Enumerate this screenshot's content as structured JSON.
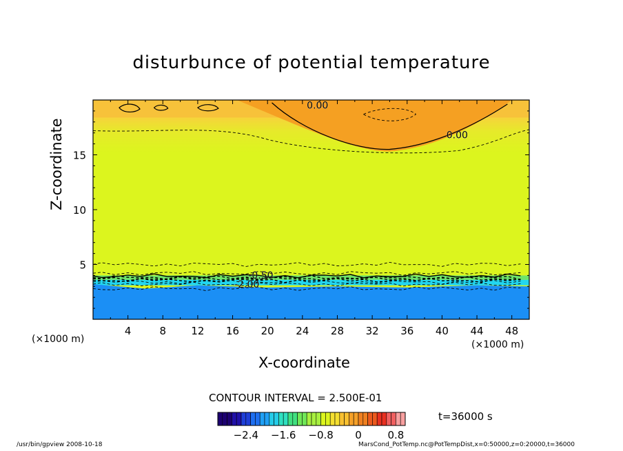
{
  "title": "disturbunce of potential temperature",
  "xlabel": "X-coordinate",
  "ylabel": "Z-coordinate",
  "x_unit_left": "(×1000 m)",
  "x_unit_right": "(×1000 m)",
  "contour_interval": "CONTOUR INTERVAL = 2.500E-01",
  "time": "t=36000 s",
  "footer_left": "/usr/bin/gpview   2008-10-18",
  "footer_right": "MarsCond_PotTemp.nc@PotTempDist,x=0:50000,z=0:20000,t=36000",
  "chart_data": {
    "type": "heatmap",
    "title": "disturbunce of potential temperature",
    "xlabel": "X-coordinate",
    "ylabel": "Z-coordinate",
    "xlim": [
      0,
      50
    ],
    "ylim": [
      0,
      20
    ],
    "x_ticks": [
      4,
      8,
      12,
      16,
      20,
      24,
      28,
      32,
      36,
      40,
      44,
      48
    ],
    "y_ticks": [
      5,
      10,
      15
    ],
    "contour_labels": [
      "0.00",
      "0.00",
      "-2.00",
      "-0.50"
    ],
    "colorbar": {
      "ticks": [
        -2.4,
        -1.6,
        -0.8,
        0,
        0.8
      ],
      "range": [
        -3.0,
        1.0
      ]
    },
    "colors": {
      "deep_blue": "#1b8ff5",
      "cyan": "#22d6f0",
      "green": "#6ee36a",
      "yellow": "#dcf51e",
      "light_orange": "#f7c23a",
      "orange": "#f5a022"
    }
  }
}
